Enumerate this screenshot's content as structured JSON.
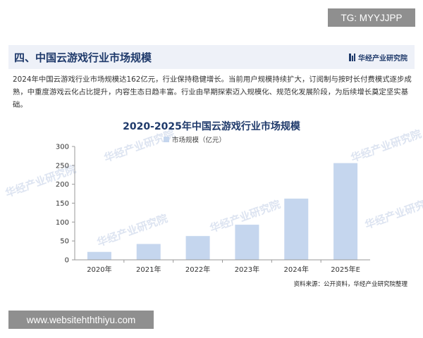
{
  "header": {
    "section_title": "四、中国云游戏行业市场规模",
    "brand": "华经产业研究院"
  },
  "intro_text": "2024年中国云游戏行业市场规模达162亿元，行业保持稳健增长。当前用户规模持续扩大，订阅制与按时长付费模式逐步成熟，中重度游戏云化占比提升，内容生态日趋丰富。行业由早期探索迈入规模化、规范化发展阶段，为后续增长奠定坚实基础。",
  "overlays": {
    "tg_label": "TG: MYYJJPP",
    "url_label": "www.websitehththiyu.com"
  },
  "watermark_text": "华经产业研究院",
  "colors": {
    "bar": "#c5d6ee",
    "title": "#1f3a6b",
    "accent": "#1f3a6b"
  },
  "chart_data": {
    "type": "bar",
    "title": "2020-2025年中国云游戏行业市场规模",
    "source": "资料来源：公开资料，华经产业研究院整理",
    "categories": [
      "2020年",
      "2021年",
      "2022年",
      "2023年",
      "2024年",
      "2025年E"
    ],
    "series": [
      {
        "name": "市场规模（亿元）",
        "values": [
          21,
          42,
          63,
          93,
          162,
          256
        ]
      }
    ],
    "ylim": [
      0,
      300
    ],
    "yticks": [
      0,
      50,
      100,
      150,
      200,
      250,
      300
    ],
    "grid": false,
    "legend_position": "top-center"
  }
}
